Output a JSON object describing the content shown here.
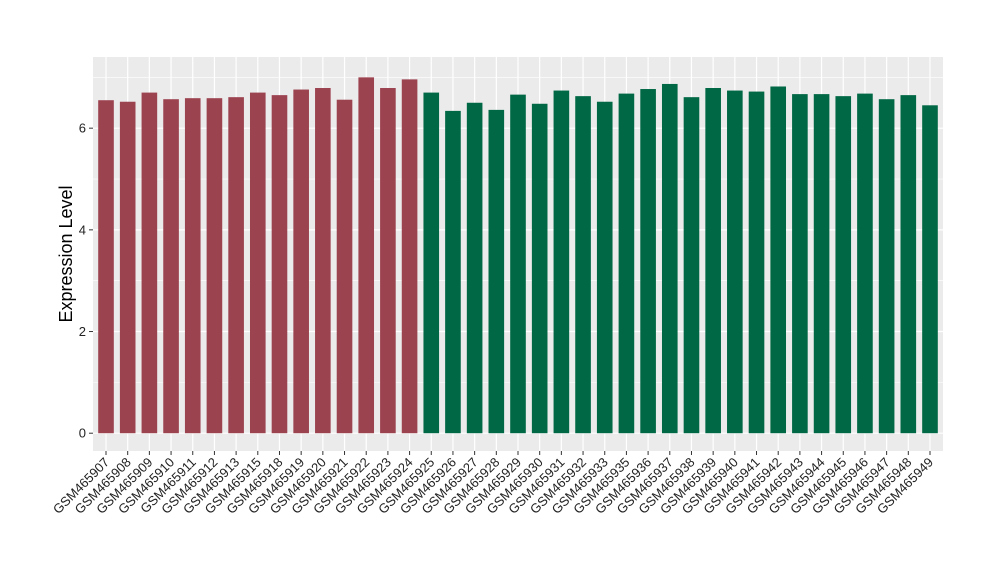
{
  "chart_data": {
    "type": "bar",
    "ylabel": "Expression Level",
    "xlabel": "",
    "ylim": [
      -0.35,
      7.4
    ],
    "yticks": [
      0,
      2,
      4,
      6
    ],
    "grid": true,
    "colors": {
      "panel_background": "#ebebeb",
      "gridline": "#ffffff",
      "group1": "#9c4350",
      "group2": "#006844"
    },
    "categories": [
      "GSM465907",
      "GSM465908",
      "GSM465909",
      "GSM465910",
      "GSM465911",
      "GSM465912",
      "GSM465913",
      "GSM465915",
      "GSM465918",
      "GSM465919",
      "GSM465920",
      "GSM465921",
      "GSM465922",
      "GSM465923",
      "GSM465924",
      "GSM465925",
      "GSM465926",
      "GSM465927",
      "GSM465928",
      "GSM465929",
      "GSM465930",
      "GSM465931",
      "GSM465932",
      "GSM465933",
      "GSM465935",
      "GSM465936",
      "GSM465937",
      "GSM465938",
      "GSM465939",
      "GSM465940",
      "GSM465941",
      "GSM465942",
      "GSM465943",
      "GSM465944",
      "GSM465945",
      "GSM465946",
      "GSM465947",
      "GSM465948",
      "GSM465949"
    ],
    "values": [
      6.55,
      6.52,
      6.7,
      6.57,
      6.59,
      6.59,
      6.61,
      6.7,
      6.65,
      6.76,
      6.79,
      6.56,
      7.0,
      6.79,
      6.96,
      6.7,
      6.34,
      6.5,
      6.36,
      6.66,
      6.48,
      6.74,
      6.63,
      6.52,
      6.68,
      6.77,
      6.87,
      6.61,
      6.79,
      6.74,
      6.72,
      6.82,
      6.67,
      6.67,
      6.63,
      6.68,
      6.57,
      6.65,
      6.45
    ],
    "bar_groups": [
      1,
      1,
      1,
      1,
      1,
      1,
      1,
      1,
      1,
      1,
      1,
      1,
      1,
      1,
      1,
      2,
      2,
      2,
      2,
      2,
      2,
      2,
      2,
      2,
      2,
      2,
      2,
      2,
      2,
      2,
      2,
      2,
      2,
      2,
      2,
      2,
      2,
      2,
      2
    ]
  }
}
